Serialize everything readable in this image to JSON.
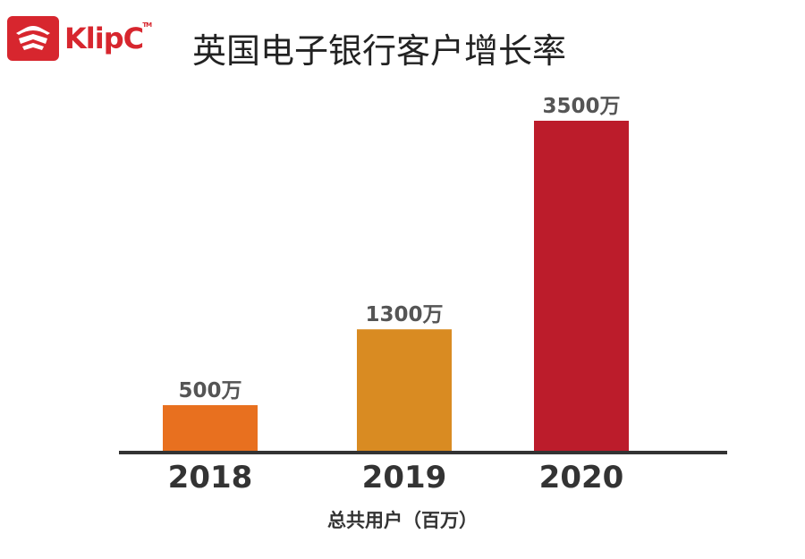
{
  "brand": {
    "name": "KlipC",
    "trademark": "TM",
    "color": "#d7262e"
  },
  "chart_data": {
    "type": "bar",
    "title": "英国电子银行客户增长率",
    "xlabel": "总共用户（百万）",
    "ylabel": "",
    "categories": [
      "2018",
      "2019",
      "2020"
    ],
    "values": [
      500,
      1300,
      3500
    ],
    "data_labels": [
      "500万",
      "1300万",
      "3500万"
    ],
    "colors": [
      "#e8701f",
      "#d98b22",
      "#bc1c2b"
    ],
    "ylim": [
      0,
      3500
    ],
    "grid": false,
    "legend": "none"
  }
}
